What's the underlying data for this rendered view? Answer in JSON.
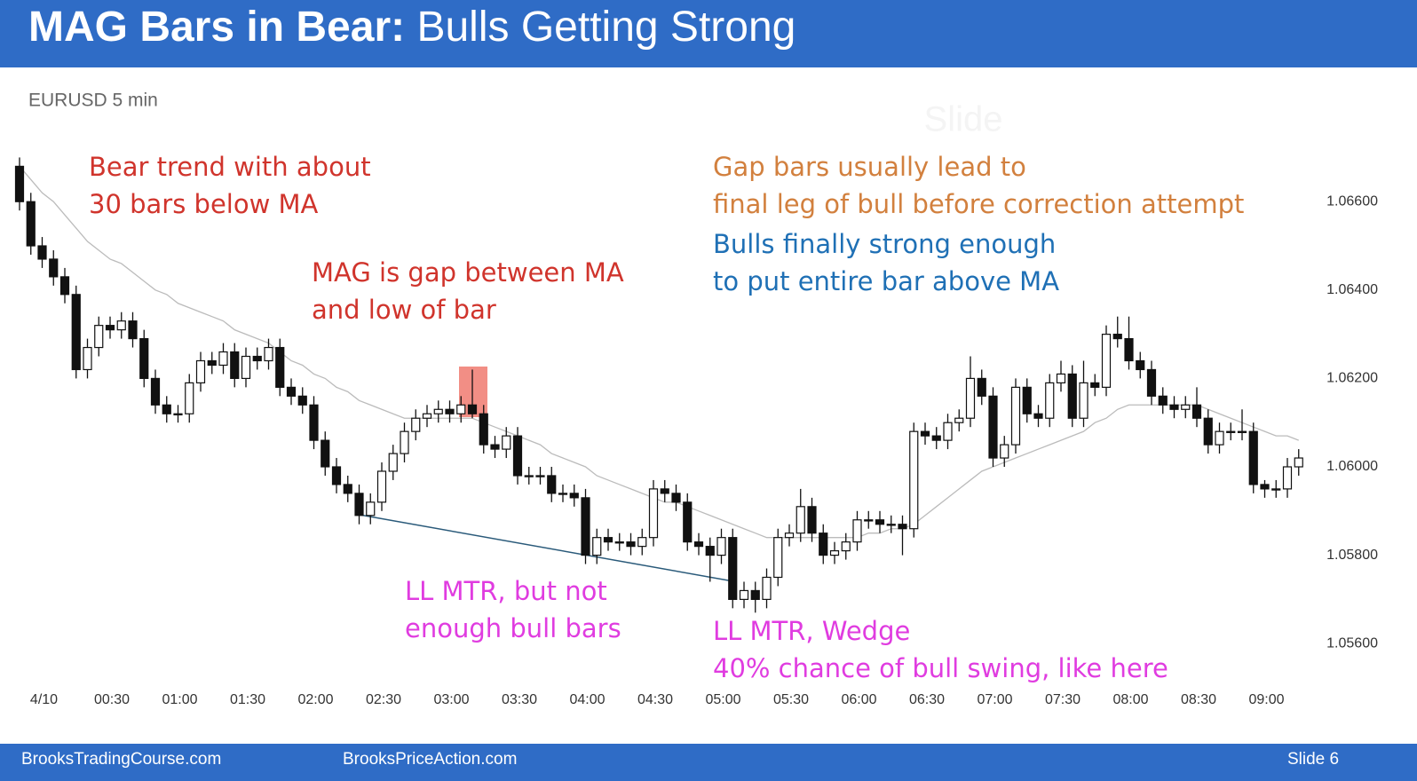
{
  "header": {
    "title_bold": "MAG Bars in Bear:",
    "title_regular": "Bulls Getting Strong"
  },
  "footer": {
    "left": "BrooksTradingCourse.com",
    "center": "BrooksPriceAction.com",
    "right": "Slide  6"
  },
  "watermark": "Slide",
  "chart_data": {
    "type": "candlestick",
    "subtitle": "EURUSD 5 min",
    "categories": [
      null,
      null,
      "4/10",
      null,
      null,
      null,
      null,
      null,
      "00:30",
      null,
      null,
      null,
      null,
      null,
      "01:00",
      null,
      null,
      null,
      null,
      null,
      "01:30",
      null,
      null,
      null,
      null,
      null,
      "02:00",
      null,
      null,
      null,
      null,
      null,
      "02:30",
      null,
      null,
      null,
      null,
      null,
      "03:00",
      null,
      null,
      null,
      null,
      null,
      "03:30",
      null,
      null,
      null,
      null,
      null,
      "04:00",
      null,
      null,
      null,
      null,
      null,
      "04:30",
      null,
      null,
      null,
      null,
      null,
      "05:00",
      null,
      null,
      null,
      null,
      null,
      "05:30",
      null,
      null,
      null,
      null,
      null,
      "06:00",
      null,
      null,
      null,
      null,
      null,
      "06:30",
      null,
      null,
      null,
      null,
      null,
      "07:00",
      null,
      null,
      null,
      null,
      null,
      "07:30",
      null,
      null,
      null,
      null,
      null,
      "08:00",
      null,
      null,
      null,
      null,
      null,
      "08:30",
      null,
      null,
      null,
      null,
      null,
      "09:00",
      null,
      null,
      null
    ],
    "open": [
      1.0668,
      1.066,
      1.065,
      1.0647,
      1.0643,
      1.0639,
      1.0622,
      1.0627,
      1.0632,
      1.0631,
      1.0633,
      1.0629,
      1.062,
      1.0614,
      1.0612,
      1.0612,
      1.0619,
      1.0624,
      1.0623,
      1.0626,
      1.062,
      1.0625,
      1.0624,
      1.0627,
      1.0618,
      1.0616,
      1.0614,
      1.0606,
      1.06,
      1.0596,
      1.0594,
      1.0589,
      1.0592,
      1.0599,
      1.0603,
      1.0608,
      1.0611,
      1.0612,
      1.0613,
      1.0612,
      1.0614,
      1.0612,
      1.0605,
      1.0604,
      1.0607,
      1.0598,
      1.0598,
      1.0598,
      1.0594,
      1.0594,
      1.0593,
      1.058,
      1.0584,
      1.0583,
      1.0583,
      1.0582,
      1.0584,
      1.0595,
      1.0594,
      1.0592,
      1.0583,
      1.0582,
      1.058,
      1.0584,
      1.057,
      1.0572,
      1.057,
      1.0575,
      1.0584,
      1.0585,
      1.0591,
      1.0585,
      1.058,
      1.0581,
      1.0583,
      1.0588,
      1.0588,
      1.0587,
      1.0587,
      1.0586,
      1.0608,
      1.0607,
      1.0606,
      1.061,
      1.0611,
      1.062,
      1.0616,
      1.0602,
      1.0605,
      1.0618,
      1.0612,
      1.0611,
      1.0619,
      1.0621,
      1.0611,
      1.0619,
      1.0618,
      1.063,
      1.0629,
      1.0624,
      1.0622,
      1.0616,
      1.0614,
      1.0613,
      1.0614,
      1.0611,
      1.0605,
      1.0608,
      1.0608,
      1.0608,
      1.0596,
      1.0595,
      1.0595,
      1.06
    ],
    "high": [
      1.067,
      1.0662,
      1.0652,
      1.0649,
      1.0645,
      1.0641,
      1.0629,
      1.0634,
      1.0634,
      1.0635,
      1.0635,
      1.0631,
      1.0622,
      1.0616,
      1.0614,
      1.0621,
      1.0626,
      1.0626,
      1.0628,
      1.0628,
      1.0627,
      1.0627,
      1.0629,
      1.0629,
      1.062,
      1.0618,
      1.0616,
      1.0608,
      1.0602,
      1.0598,
      1.0596,
      1.0594,
      1.0601,
      1.0605,
      1.061,
      1.0613,
      1.0614,
      1.0615,
      1.0615,
      1.0616,
      1.0622,
      1.0614,
      1.0607,
      1.0609,
      1.0609,
      1.06,
      1.06,
      1.06,
      1.0596,
      1.0596,
      1.0595,
      1.0586,
      1.0586,
      1.0585,
      1.0585,
      1.0586,
      1.0597,
      1.0597,
      1.0596,
      1.0594,
      1.0585,
      1.0584,
      1.0586,
      1.0586,
      1.0574,
      1.0574,
      1.0577,
      1.0586,
      1.0587,
      1.0595,
      1.0593,
      1.0587,
      1.0583,
      1.0585,
      1.059,
      1.059,
      1.059,
      1.0589,
      1.0589,
      1.061,
      1.061,
      1.0609,
      1.0612,
      1.0613,
      1.0625,
      1.0622,
      1.0618,
      1.0607,
      1.062,
      1.062,
      1.0614,
      1.0621,
      1.0624,
      1.0623,
      1.0624,
      1.0621,
      1.0632,
      1.0634,
      1.0634,
      1.0626,
      1.0624,
      1.0618,
      1.0616,
      1.0616,
      1.0618,
      1.0613,
      1.061,
      1.061,
      1.0613,
      1.061,
      1.0597,
      1.0597,
      1.0602,
      1.0604
    ],
    "low": [
      1.0658,
      1.0648,
      1.0645,
      1.0641,
      1.0637,
      1.062,
      1.062,
      1.0625,
      1.0629,
      1.0629,
      1.0627,
      1.0618,
      1.0612,
      1.061,
      1.061,
      1.061,
      1.0617,
      1.0621,
      1.0621,
      1.0618,
      1.0618,
      1.0622,
      1.0622,
      1.0616,
      1.0614,
      1.0612,
      1.0604,
      1.0598,
      1.0594,
      1.0592,
      1.0587,
      1.0587,
      1.059,
      1.0597,
      1.0601,
      1.0606,
      1.0609,
      1.061,
      1.061,
      1.061,
      1.0611,
      1.0603,
      1.0602,
      1.0602,
      1.0596,
      1.0596,
      1.0596,
      1.0592,
      1.0592,
      1.0591,
      1.0578,
      1.0578,
      1.0581,
      1.0581,
      1.058,
      1.058,
      1.0582,
      1.0592,
      1.059,
      1.0581,
      1.058,
      1.0574,
      1.0578,
      1.0568,
      1.0568,
      1.0567,
      1.0568,
      1.0573,
      1.0582,
      1.0583,
      1.0583,
      1.0578,
      1.0578,
      1.0579,
      1.0581,
      1.0586,
      1.0585,
      1.0585,
      1.058,
      1.0584,
      1.0605,
      1.0604,
      1.0604,
      1.0608,
      1.0609,
      1.0614,
      1.06,
      1.06,
      1.0603,
      1.061,
      1.0609,
      1.0609,
      1.0617,
      1.0609,
      1.0609,
      1.0616,
      1.0616,
      1.0627,
      1.0622,
      1.062,
      1.0614,
      1.0612,
      1.0611,
      1.0611,
      1.0609,
      1.0603,
      1.0603,
      1.0606,
      1.0606,
      1.0594,
      1.0593,
      1.0593,
      1.0593,
      1.0598
    ],
    "close": [
      1.066,
      1.065,
      1.0647,
      1.0643,
      1.0639,
      1.0622,
      1.0627,
      1.0632,
      1.0631,
      1.0633,
      1.0629,
      1.062,
      1.0614,
      1.0612,
      1.0612,
      1.0619,
      1.0624,
      1.0623,
      1.0626,
      1.062,
      1.0625,
      1.0624,
      1.0627,
      1.0618,
      1.0616,
      1.0614,
      1.0606,
      1.06,
      1.0596,
      1.0594,
      1.0589,
      1.0592,
      1.0599,
      1.0603,
      1.0608,
      1.0611,
      1.0612,
      1.0613,
      1.0612,
      1.0614,
      1.0612,
      1.0605,
      1.0604,
      1.0607,
      1.0598,
      1.0598,
      1.0598,
      1.0594,
      1.0594,
      1.0593,
      1.058,
      1.0584,
      1.0583,
      1.0583,
      1.0582,
      1.0584,
      1.0595,
      1.0594,
      1.0592,
      1.0583,
      1.0582,
      1.058,
      1.0584,
      1.057,
      1.0572,
      1.057,
      1.0575,
      1.0584,
      1.0585,
      1.0591,
      1.0585,
      1.058,
      1.0581,
      1.0583,
      1.0588,
      1.0588,
      1.0587,
      1.0587,
      1.0586,
      1.0608,
      1.0607,
      1.0606,
      1.061,
      1.0611,
      1.062,
      1.0616,
      1.0602,
      1.0605,
      1.0618,
      1.0612,
      1.0611,
      1.0619,
      1.0621,
      1.0611,
      1.0619,
      1.0618,
      1.063,
      1.0629,
      1.0624,
      1.0622,
      1.0616,
      1.0614,
      1.0613,
      1.0614,
      1.0611,
      1.0605,
      1.0608,
      1.0608,
      1.0608,
      1.0596,
      1.0595,
      1.0595,
      1.06,
      1.0602
    ],
    "ma": {
      "color": "#bbbbbb",
      "values": [
        1.0668,
        1.0665,
        1.0662,
        1.066,
        1.0657,
        1.0654,
        1.0651,
        1.0649,
        1.0647,
        1.0646,
        1.0644,
        1.0642,
        1.064,
        1.0639,
        1.0637,
        1.0636,
        1.0635,
        1.0634,
        1.0633,
        1.0631,
        1.063,
        1.0629,
        1.0628,
        1.0626,
        1.0624,
        1.0623,
        1.0621,
        1.062,
        1.0618,
        1.0617,
        1.0615,
        1.0614,
        1.0613,
        1.0612,
        1.0611,
        1.0611,
        1.0611,
        1.0611,
        1.0611,
        1.0611,
        1.0611,
        1.061,
        1.0609,
        1.0608,
        1.0607,
        1.0606,
        1.0605,
        1.0603,
        1.0602,
        1.0601,
        1.06,
        1.0598,
        1.0597,
        1.0596,
        1.0595,
        1.0594,
        1.0593,
        1.0592,
        1.0592,
        1.0591,
        1.059,
        1.0589,
        1.0588,
        1.0587,
        1.0586,
        1.0585,
        1.0584,
        1.0584,
        1.0584,
        1.0584,
        1.0584,
        1.0584,
        1.0584,
        1.0584,
        1.0584,
        1.0585,
        1.0585,
        1.0586,
        1.0586,
        1.0587,
        1.0589,
        1.0591,
        1.0593,
        1.0595,
        1.0597,
        1.0599,
        1.06,
        1.0601,
        1.0602,
        1.0603,
        1.0604,
        1.0605,
        1.0606,
        1.0607,
        1.0608,
        1.061,
        1.0611,
        1.0613,
        1.0614,
        1.0614,
        1.0614,
        1.0614,
        1.0614,
        1.0614,
        1.0614,
        1.0613,
        1.0612,
        1.0611,
        1.061,
        1.0609,
        1.0608,
        1.0607,
        1.0607,
        1.0606
      ]
    },
    "bull_color": "#ffffff",
    "bear_color": "#111111",
    "ylim": [
      1.0551,
      1.06735
    ],
    "yticks": [
      {
        "value": 1.056,
        "label": "1.05600"
      },
      {
        "value": 1.058,
        "label": "1.05800"
      },
      {
        "value": 1.06,
        "label": "1.06000"
      },
      {
        "value": 1.062,
        "label": "1.06200"
      },
      {
        "value": 1.064,
        "label": "1.06400"
      },
      {
        "value": 1.066,
        "label": "1.06600"
      }
    ],
    "annotations": [
      {
        "lines": [
          "Bear trend with about",
          "30 bars below MA"
        ],
        "color": "#d0342c"
      },
      {
        "lines": [
          "MAG is gap between MA",
          "and low of bar"
        ],
        "color": "#d0342c"
      },
      {
        "lines": [
          "Gap bars usually lead to",
          "final leg of bull before correction attempt"
        ],
        "color": "#d2803e"
      },
      {
        "lines": [
          "Bulls finally strong enough",
          "to put entire bar above MA"
        ],
        "color": "#1f70b5"
      },
      {
        "lines": [
          "LL MTR, but not",
          "enough bull bars"
        ],
        "color": "#e03ce0"
      },
      {
        "lines": [
          "LL MTR, Wedge",
          "40% chance of bull swing, like here"
        ],
        "color": "#e03ce0"
      }
    ]
  }
}
